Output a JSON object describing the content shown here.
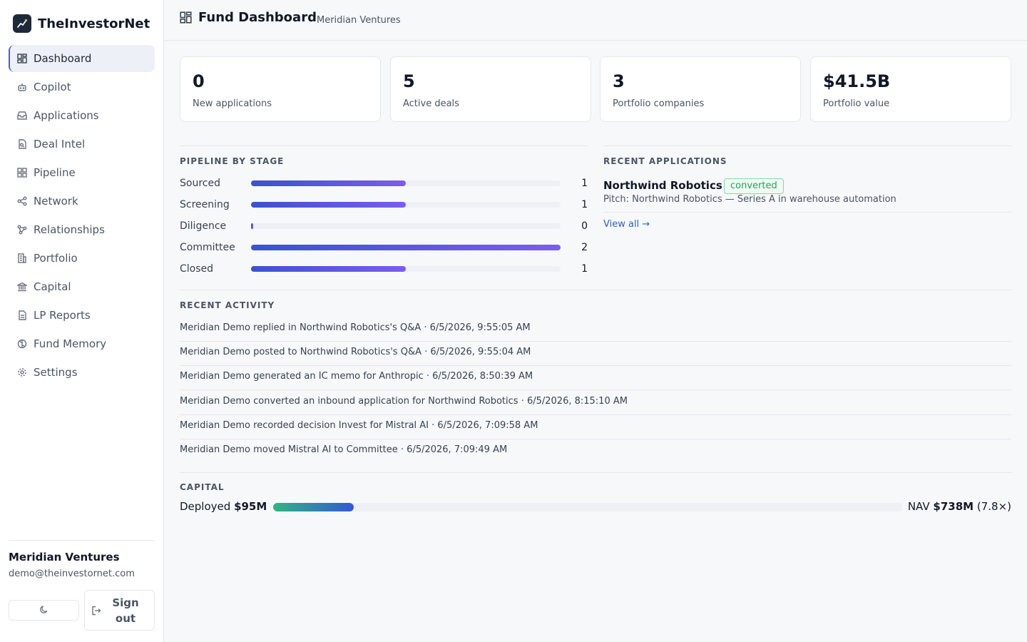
{
  "brand": {
    "name": "TheInvestorNet"
  },
  "sidebar": {
    "items": [
      {
        "label": "Dashboard",
        "icon": "dashboard-icon",
        "active": true
      },
      {
        "label": "Copilot",
        "icon": "bot-icon"
      },
      {
        "label": "Applications",
        "icon": "inbox-icon"
      },
      {
        "label": "Deal Intel",
        "icon": "document-search-icon"
      },
      {
        "label": "Pipeline",
        "icon": "pipeline-grid-icon"
      },
      {
        "label": "Network",
        "icon": "share-network-icon"
      },
      {
        "label": "Relationships",
        "icon": "relationships-icon"
      },
      {
        "label": "Portfolio",
        "icon": "building-icon"
      },
      {
        "label": "Capital",
        "icon": "bank-icon"
      },
      {
        "label": "LP Reports",
        "icon": "report-icon"
      },
      {
        "label": "Fund Memory",
        "icon": "brain-icon"
      },
      {
        "label": "Settings",
        "icon": "gear-icon"
      }
    ],
    "org_name": "Meridian Ventures",
    "org_email": "demo@theinvestornet.com",
    "signout_label": "Sign out"
  },
  "header": {
    "title": "Fund Dashboard",
    "subtitle": "Meridian Ventures"
  },
  "stats": [
    {
      "value": "0",
      "label": "New applications"
    },
    {
      "value": "5",
      "label": "Active deals"
    },
    {
      "value": "3",
      "label": "Portfolio companies"
    },
    {
      "value": "$41.5B",
      "label": "Portfolio value"
    }
  ],
  "pipeline": {
    "title": "PIPELINE BY STAGE",
    "max": 2,
    "stages": [
      {
        "label": "Sourced",
        "count": 1
      },
      {
        "label": "Screening",
        "count": 1
      },
      {
        "label": "Diligence",
        "count": 0
      },
      {
        "label": "Committee",
        "count": 2
      },
      {
        "label": "Closed",
        "count": 1
      }
    ]
  },
  "recent_applications": {
    "title": "RECENT APPLICATIONS",
    "items": [
      {
        "name": "Northwind Robotics",
        "status": "converted",
        "pitch": "Pitch: Northwind Robotics — Series A in warehouse automation"
      }
    ],
    "view_all": "View all →"
  },
  "activity": {
    "title": "RECENT ACTIVITY",
    "items": [
      "Meridian Demo replied in Northwind Robotics's Q&A · 6/5/2026, 9:55:05 AM",
      "Meridian Demo posted to Northwind Robotics's Q&A · 6/5/2026, 9:55:04 AM",
      "Meridian Demo generated an IC memo for Anthropic · 6/5/2026, 8:50:39 AM",
      "Meridian Demo converted an inbound application for Northwind Robotics · 6/5/2026, 8:15:10 AM",
      "Meridian Demo recorded decision Invest for Mistral AI · 6/5/2026, 7:09:58 AM",
      "Meridian Demo moved Mistral AI to Committee · 6/5/2026, 7:09:49 AM"
    ]
  },
  "capital": {
    "title": "CAPITAL",
    "deployed_label": "Deployed",
    "deployed_value": "$95M",
    "deployed_fraction": 0.128,
    "nav_label": "NAV",
    "nav_value": "$738M",
    "nav_multiple": "(7.8×)"
  },
  "colors": {
    "accent": "#4f5bd5",
    "badge_green": "#22a456",
    "link": "#2f5fc4"
  }
}
